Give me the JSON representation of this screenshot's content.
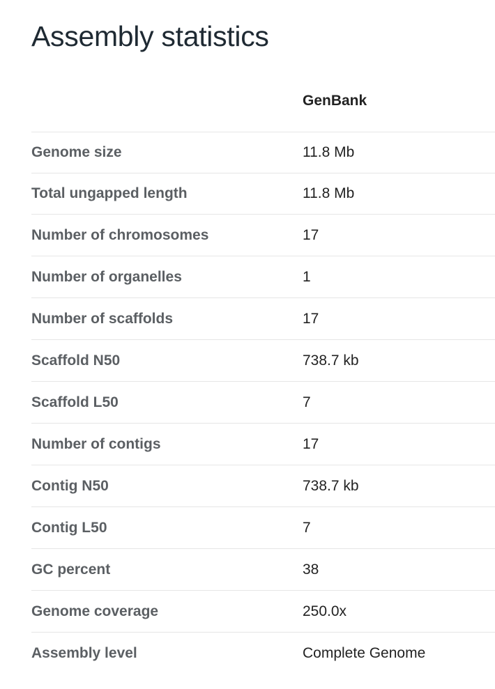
{
  "page": {
    "title": "Assembly statistics"
  },
  "table": {
    "column_header": "GenBank",
    "rows": [
      {
        "label": "Genome size",
        "value": "11.8 Mb"
      },
      {
        "label": "Total ungapped length",
        "value": "11.8 Mb"
      },
      {
        "label": "Number of chromosomes",
        "value": "17"
      },
      {
        "label": "Number of organelles",
        "value": "1"
      },
      {
        "label": "Number of scaffolds",
        "value": "17"
      },
      {
        "label": "Scaffold N50",
        "value": "738.7 kb"
      },
      {
        "label": "Scaffold L50",
        "value": "7"
      },
      {
        "label": "Number of contigs",
        "value": "17"
      },
      {
        "label": "Contig N50",
        "value": "738.7 kb"
      },
      {
        "label": "Contig L50",
        "value": "7"
      },
      {
        "label": "GC percent",
        "value": "38"
      },
      {
        "label": "Genome coverage",
        "value": "250.0x"
      },
      {
        "label": "Assembly level",
        "value": "Complete Genome"
      }
    ]
  }
}
